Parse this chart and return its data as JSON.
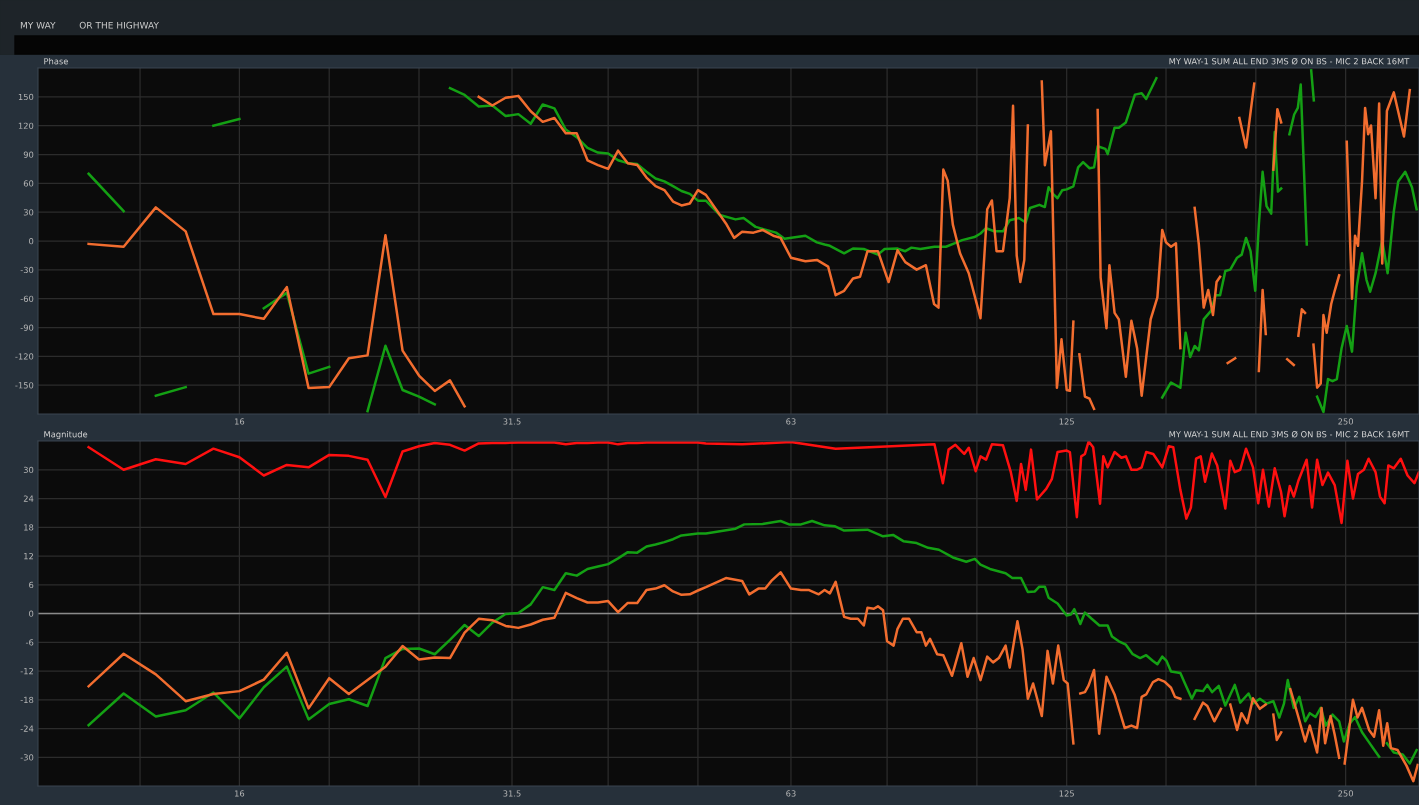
{
  "chart_data": [
    {
      "type": "line",
      "title": "Phase",
      "subtitle": "MY WAY-1 SUM ALL END 3MS Ø ON BS - MIC 2 BACK 16MT",
      "annotations": [
        "MY WAY",
        "OR THE HIGHWAY"
      ],
      "log": "x",
      "grid": true,
      "legend": false,
      "xlim": [
        9.7,
        300
      ],
      "xticks": [
        {
          "value": 12.5,
          "label": null
        },
        16,
        {
          "value": 20,
          "label": null
        },
        {
          "value": 25,
          "label": null
        },
        31.5,
        {
          "value": 40,
          "label": null
        },
        {
          "value": 50,
          "label": null
        },
        63,
        {
          "value": 80,
          "label": null
        },
        {
          "value": 100,
          "label": null
        },
        125,
        {
          "value": 160,
          "label": null
        },
        {
          "value": 200,
          "label": null
        },
        250
      ],
      "ylim": [
        -180,
        180
      ],
      "yticks": [
        -150,
        -120,
        -90,
        -60,
        -30,
        0,
        30,
        60,
        90,
        120,
        150
      ],
      "series": [
        {
          "color": "#14a014",
          "x": [
            11,
            12,
            12.5,
            13,
            14,
            14.5,
            15,
            16,
            16.5,
            17,
            18,
            19,
            20,
            21,
            22,
            23,
            24,
            25,
            26,
            26.5,
            27,
            28,
            29,
            30,
            31,
            32,
            33,
            34,
            35,
            36,
            37,
            38,
            39,
            40,
            41,
            42,
            43,
            44,
            45,
            46,
            47,
            48,
            49,
            50,
            51,
            52.8,
            54.9,
            56,
            57.7,
            60.7,
            62,
            65.3,
            67.2,
            68.5,
            69.4,
            71.9,
            73.5,
            75.5,
            78.2,
            79.5,
            82,
            83.7,
            85,
            86.9,
            90,
            92.6,
            94.7,
            96.4,
            99.4,
            100.9,
            102.3,
            104.4,
            106.7,
            108.5,
            111,
            112.9,
            114.1,
            116.8,
            118.4,
            119.5,
            120.8,
            122.2,
            123.6,
            125,
            127.1,
            128.6,
            130.2,
            132.3,
            133.8,
            135,
            137.6,
            138.4,
            140.8,
            142.3,
            144.8,
            148.1,
            150.6,
            152.3,
            156.2,
            157.5,
            158.5,
            162,
            165.8,
            168,
            169.9,
            171.8,
            173.6,
            175.7,
            179,
            181,
            183,
            185.4,
            187.7,
            190.9,
            193.1,
            195.2,
            197.4,
            199.7,
            201.5,
            203.4,
            205.4,
            207.8,
            209.6,
            211.3,
            213,
            215,
            217.4,
            220,
            222,
            223.6,
            227,
            228.5,
            229.5,
            231,
            232,
            232.9,
            236.6,
            239.3,
            242,
            244.6,
            247.5,
            250.7,
            254,
            257,
            260.4,
            263.3,
            265.7,
            269.3,
            273.8,
            277.5,
            281.8,
            284.9,
            289.9,
            294.8,
            298.2
          ],
          "values": [
            70,
            31,
            null,
            -161,
            -152,
            null,
            120,
            127,
            null,
            -70,
            -54,
            -138,
            -131,
            null,
            -177,
            -109,
            -155,
            -162,
            -170,
            null,
            159,
            152,
            140,
            141,
            130,
            132,
            122,
            142,
            138,
            116,
            108,
            97,
            92,
            91,
            84,
            81,
            80,
            72,
            65,
            62,
            57,
            52,
            49,
            42,
            42,
            27,
            22.5,
            23.9,
            14.7,
            8.7,
            2.3,
            5.5,
            -1.4,
            -3.7,
            -5,
            -12.8,
            -7.8,
            -8.3,
            -14.2,
            -8.3,
            -7.8,
            -10.6,
            -6.9,
            -8.3,
            -6,
            -6,
            -2.3,
            0.9,
            4.1,
            7.8,
            13.3,
            10.1,
            10.1,
            21.6,
            23.9,
            19.3,
            34.4,
            37.6,
            35.3,
            56,
            49,
            44.5,
            52.8,
            53.7,
            56.9,
            76.6,
            82.1,
            75.7,
            76.6,
            98.6,
            95.9,
            90.4,
            117.9,
            117.9,
            123.4,
            152.3,
            153.7,
            147.7,
            169.3,
            null,
            -162.8,
            -147.2,
            -152.7,
            -95.4,
            -120.6,
            -109.2,
            -113.8,
            -81.6,
            -72.5,
            -56.4,
            -56.4,
            -31.2,
            -29.8,
            -17.4,
            -14.2,
            3.2,
            -10.6,
            -51.8,
            17,
            72,
            36.2,
            28.4,
            113.3,
            51.4,
            54.6,
            null,
            111,
            131.6,
            138.5,
            162.8,
            -3.7,
            null,
            177.5,
            146.3,
            null,
            -161.9,
            -178,
            -143.6,
            -145.8,
            -143.6,
            -111.5,
            -88.5,
            -115.1,
            -47.2,
            -12.8,
            -40.4,
            -52.8,
            -33.5,
            0.9,
            -33.5,
            30.7,
            61.9,
            72,
            56,
            33
          ]
        },
        {
          "color": "#f26d2f",
          "x": [
            11,
            12,
            13,
            14,
            15,
            16,
            17,
            18,
            19,
            20,
            21,
            22,
            23,
            24,
            25,
            26,
            27,
            28,
            28.5,
            29,
            30,
            31,
            32,
            33,
            34,
            35,
            36,
            37,
            38,
            39,
            40,
            41,
            42,
            43,
            44,
            45,
            46,
            47,
            48,
            49,
            50,
            51,
            53.6,
            54.7,
            55.8,
            57.4,
            58.7,
            60.3,
            61.4,
            63,
            65.3,
            67.2,
            69.1,
            70.4,
            71.9,
            73.5,
            74.8,
            76.2,
            78.2,
            80.3,
            82.1,
            83.7,
            86.1,
            88.1,
            89.9,
            90.9,
            92,
            93,
            94.2,
            95.9,
            98,
            100.9,
            102.6,
            103.8,
            105,
            106.7,
            108.5,
            109.4,
            110.4,
            111.4,
            112.5,
            113.5,
            115.5,
            117.5,
            118.4,
            120.2,
            122,
            123.4,
            125,
            126,
            127.1,
            128,
            129,
            130.8,
            132.3,
            133.8,
            134.5,
            135,
            136,
            138,
            139,
            140.8,
            142.3,
            144.8,
            146.8,
            148.9,
            150.6,
            154,
            156.6,
            158.5,
            160,
            162,
            164,
            165.8,
            168,
            171.8,
            173.6,
            175.7,
            177.7,
            179.8,
            181.4,
            183,
            185,
            186.5,
            190,
            191,
            192,
            195.2,
            199.2,
            200.5,
            201.5,
            203.4,
            205,
            207,
            208.9,
            211,
            213,
            215,
            216.2,
            219.8,
            220.5,
            222.3,
            224.2,
            226,
            228.5,
            230.8,
            232.9,
            235,
            236.6,
            238.5,
            241.2,
            243.3,
            246,
            248,
            250.7,
            254,
            255.9,
            257.8,
            260.4,
            262.4,
            264.4,
            266.3,
            269.3,
            271.7,
            273.8,
            277,
            281.8,
            289,
            293.2
          ],
          "values": [
            -3,
            -6,
            35,
            10,
            -76,
            -76,
            -81,
            -48,
            -153,
            -152,
            -122,
            -119,
            6,
            -114,
            -140,
            -156,
            -145,
            -172,
            null,
            150,
            141,
            149,
            151,
            135,
            124,
            128,
            112,
            112,
            84,
            79,
            75,
            94,
            81,
            79,
            66,
            57,
            53,
            41,
            37,
            39,
            53,
            48,
            18.3,
            3.2,
            9.6,
            8.7,
            11.5,
            5.5,
            3.2,
            -17.4,
            -21.1,
            -19.7,
            -26.6,
            -56.4,
            -51.8,
            -39,
            -37.2,
            -10.6,
            -10.6,
            -42.7,
            -9.6,
            -22,
            -29.8,
            -25.2,
            -65.6,
            -69.3,
            74.3,
            62.8,
            17,
            -12.8,
            -33.5,
            -80.3,
            33,
            42.2,
            -10.6,
            -10.6,
            44.5,
            140.8,
            -15.1,
            -42.7,
            -19.7,
            120.2,
            null,
            166,
            78.9,
            114.2,
            -152.7,
            -102.3,
            -155,
            -155.9,
            -83.9,
            null,
            -118,
            -161.9,
            -164.1,
            -174.7,
            null,
            136.2,
            -38.1,
            -90.8,
            -25.2,
            -74.8,
            -81.6,
            -141.3,
            -83,
            -111.5,
            -161,
            -81.6,
            -58.7,
            11.5,
            -1.4,
            -6,
            -2.3,
            -111.5,
            null,
            34.4,
            -3.7,
            -69.3,
            -50.9,
            -77.1,
            -42.7,
            -37.2,
            null,
            -127,
            -122,
            null,
            128,
            97.2,
            163.8,
            null,
            -135.3,
            -50.9,
            -96.8,
            null,
            74.3,
            137.2,
            123.4,
            null,
            -123,
            -129,
            null,
            -98.6,
            -71.1,
            -74.8,
            null,
            -107.8,
            -152.7,
            -148.2,
            -77.1,
            -95.4,
            -65.6,
            -51.8,
            -35.8,
            null,
            103.2,
            -60.1,
            5.5,
            -5,
            61.9,
            138.5,
            111,
            120.2,
            44.5,
            143.1,
            -23.4,
            135.3,
            154.6,
            108.7,
            156.9
          ]
        }
      ]
    },
    {
      "type": "line",
      "title": "Magnitude",
      "subtitle": "MY WAY-1 SUM ALL END 3MS Ø ON BS - MIC 2 BACK 16MT",
      "log": "x",
      "grid": true,
      "legend": false,
      "xlim": [
        9.7,
        300
      ],
      "xticks": [
        {
          "value": 12.5,
          "label": null
        },
        16,
        {
          "value": 20,
          "label": null
        },
        {
          "value": 25,
          "label": null
        },
        31.5,
        {
          "value": 40,
          "label": null
        },
        {
          "value": 50,
          "label": null
        },
        63,
        {
          "value": 80,
          "label": null
        },
        {
          "value": 100,
          "label": null
        },
        125,
        {
          "value": 160,
          "label": null
        },
        {
          "value": 200,
          "label": null
        },
        250
      ],
      "ylim": [
        -36,
        36
      ],
      "yticks": [
        -30,
        -24,
        -18,
        -12,
        -6,
        0,
        6,
        12,
        18,
        24,
        30
      ],
      "ref_lines": [
        {
          "axis": "y",
          "value": 0,
          "color": "#8a8a8a"
        }
      ],
      "series": [
        {
          "color": "#ff1010",
          "x": [
            11,
            12,
            13,
            14,
            15,
            16,
            17,
            18,
            19,
            20,
            21,
            22,
            23,
            24,
            25,
            26,
            27,
            28,
            29,
            30,
            31,
            32,
            33,
            34,
            35,
            36,
            37,
            38,
            39,
            40,
            41,
            42,
            43,
            44,
            45,
            46,
            47,
            48,
            49,
            50,
            51,
            55.8,
            63,
            70.4,
            80.9,
            90,
            91.9,
            93.2,
            94.8,
            96.9,
            98,
            99.7,
            100.9,
            102.3,
            103.8,
            106.7,
            108.8,
            110.4,
            111.6,
            112.9,
            114.4,
            116.1,
            118.8,
            120.5,
            122.2,
            125,
            126,
            128.2,
            129.6,
            130.8,
            132,
            133.5,
            135.8,
            136.9,
            138.4,
            140.8,
            143.2,
            144.8,
            146.8,
            148.9,
            150.6,
            152.3,
            155,
            158.5,
            161.1,
            162.9,
            165.8,
            168.3,
            170.2,
            172.4,
            174.4,
            176.3,
            179.3,
            181.7,
            185.4,
            187.7,
            189.8,
            192.4,
            195.2,
            198.6,
            201.2,
            203.6,
            206.6,
            209.6,
            212.9,
            214.8,
            217.6,
            219.8,
            222.3,
            226.9,
            230,
            232.9,
            236,
            239.3,
            243.3,
            247.5,
            251.1,
            254.6,
            257.8,
            261.6,
            264.7,
            269.3,
            272.3,
            275.4,
            278,
            281.8,
            286.7,
            291.6,
            296.6,
            299.8
          ],
          "values": [
            34.7,
            30,
            32.2,
            31.2,
            34.4,
            32.6,
            28.8,
            31,
            30.5,
            33.1,
            32.9,
            32.1,
            24.3,
            33.8,
            34.9,
            35.6,
            35.2,
            34,
            35.5,
            35.6,
            35.6,
            35.7,
            35.7,
            35.7,
            35.7,
            35.3,
            35.6,
            35.6,
            35.7,
            35.7,
            35.3,
            35.6,
            35.6,
            35.7,
            35.7,
            35.7,
            35.7,
            35.7,
            35.7,
            35.7,
            35.5,
            35.3,
            35.8,
            34.4,
            34.9,
            35.3,
            27.2,
            34.2,
            35.2,
            33.3,
            34.6,
            29.7,
            32.8,
            32.1,
            35.3,
            35.1,
            29.5,
            23.5,
            31.2,
            25.8,
            34.2,
            23.8,
            26,
            28.1,
            33.7,
            34,
            33.7,
            20.1,
            32.8,
            33.3,
            35.9,
            34.7,
            22.9,
            32.8,
            30.5,
            33.7,
            32.5,
            32.8,
            30,
            30,
            30.5,
            33.7,
            33.3,
            30.5,
            34.9,
            34.7,
            25.8,
            19.8,
            22.1,
            32.3,
            32.8,
            27.5,
            33.4,
            30.9,
            21.9,
            31.9,
            29.5,
            30,
            34.4,
            30.5,
            23,
            30,
            22.3,
            30.3,
            25.4,
            20.3,
            26.6,
            24.4,
            27.7,
            32.1,
            22.1,
            32.1,
            26.8,
            29.4,
            26.8,
            18.9,
            31.9,
            24,
            29.1,
            30,
            32.3,
            29.5,
            24.4,
            23,
            30.9,
            30.3,
            32.3,
            28.8,
            27.2,
            29.4
          ]
        },
        {
          "color": "#14a014",
          "x": [
            11,
            12,
            13,
            14,
            15,
            16,
            17,
            18,
            19,
            20,
            21,
            22,
            23,
            24,
            25,
            26,
            27,
            28,
            29,
            30,
            31,
            32,
            33,
            34,
            35,
            36,
            37,
            38,
            39,
            40,
            41,
            42,
            43,
            44,
            45,
            46,
            47,
            48,
            49,
            50,
            51,
            54.9,
            56.1,
            58.7,
            61.4,
            62.7,
            64.6,
            66.4,
            68.5,
            70.3,
            71.9,
            76.2,
            79.2,
            81.2,
            83.3,
            86.1,
            88.6,
            91,
            94.2,
            97.4,
            99.5,
            100.9,
            103.3,
            107.4,
            109.2,
            111.6,
            113.5,
            115.5,
            116.8,
            118.4,
            119.5,
            122.2,
            125,
            126.3,
            127.4,
            129.3,
            130.8,
            133,
            135.6,
            138.4,
            139.9,
            142.3,
            144.8,
            147.3,
            150,
            152.3,
            154.9,
            156.6,
            158.5,
            160.2,
            162,
            165.8,
            167.7,
            170.6,
            172.4,
            175.4,
            177.3,
            179.4,
            182.4,
            185.4,
            189.8,
            192.4,
            196.4,
            198.6,
            202,
            205.4,
            208.9,
            212,
            214.5,
            216.5,
            219.8,
            222.8,
            226.1,
            228.7,
            232,
            235,
            238,
            242,
            246,
            248.9,
            252.5,
            255.9,
            260.4,
            265,
            271.7,
            274,
            277,
            281.8,
            288,
            293.2,
            298.2
          ],
          "values": [
            -23.3,
            -16.7,
            -21.5,
            -20.2,
            -16.5,
            -21.9,
            -15.4,
            -11.1,
            -22.1,
            -18.9,
            -17.9,
            -19.3,
            -9.3,
            -7.4,
            -7.3,
            -8.5,
            -5.5,
            -2.4,
            -4.7,
            -1.9,
            -0.1,
            0.1,
            1.9,
            5.5,
            4.9,
            8.4,
            7.9,
            9.3,
            9.8,
            10.3,
            11.5,
            12.8,
            12.7,
            14,
            14.4,
            14.9,
            15.5,
            16.3,
            16.5,
            16.7,
            16.7,
            17.7,
            18.6,
            18.7,
            19.3,
            18.6,
            18.6,
            19.3,
            18.4,
            18.2,
            17.3,
            17.5,
            16.1,
            16.4,
            15.1,
            14.7,
            13.7,
            13.3,
            11.7,
            10.8,
            11.4,
            10.2,
            9.3,
            8.4,
            7.4,
            7.4,
            4.5,
            4.6,
            5.6,
            5.6,
            3.3,
            2.1,
            -0.4,
            -0.2,
            0.9,
            -2.2,
            0.2,
            -1.1,
            -2.5,
            -2.5,
            -4.8,
            -5.8,
            -6.5,
            -8.5,
            -9.3,
            -8.7,
            -9.9,
            -10.6,
            -9,
            -9.9,
            -12.1,
            -12.4,
            -14.6,
            -17.8,
            -16,
            -16.2,
            -14.9,
            -16.4,
            -15.1,
            -19.2,
            -14.9,
            -18.6,
            -16.7,
            -18.8,
            -17.8,
            -18.8,
            -18.3,
            -21.7,
            -18.8,
            -13.9,
            -19.7,
            -17.4,
            -22.5,
            -20.8,
            -21.6,
            -19.7,
            -23.4,
            -21.1,
            -22.5,
            -26.7,
            -23,
            -21.6,
            -24.8,
            -26.9,
            -29.9,
            null,
            -27.1,
            -29,
            -29.4,
            -31.3,
            -28.5
          ]
        },
        {
          "color": "#f26d2f",
          "x": [
            11,
            12,
            13,
            14,
            15,
            16,
            17,
            18,
            19,
            20,
            21,
            22,
            23,
            24,
            25,
            26,
            27,
            28,
            29,
            30,
            31,
            32,
            33,
            34,
            35,
            36,
            37,
            38,
            39,
            40,
            41,
            42,
            43,
            44,
            45,
            46,
            47,
            48,
            49,
            50,
            51,
            53.6,
            55.8,
            56.8,
            58.1,
            59.1,
            60,
            61.4,
            63,
            64.6,
            65.9,
            67.5,
            68.5,
            69.4,
            70.4,
            71.9,
            73.1,
            74.4,
            75.5,
            76.2,
            77.4,
            78.2,
            79.2,
            80,
            81.3,
            82.1,
            83.2,
            84.5,
            86.1,
            87.1,
            88.1,
            89,
            90.6,
            92,
            94,
            96.2,
            97.7,
            99.2,
            100.9,
            102.6,
            104.1,
            105.6,
            107.4,
            108.5,
            110.6,
            112,
            113.5,
            115,
            117.5,
            119.2,
            120.8,
            122.4,
            124.1,
            125.3,
            127.1,
            128.2,
            129.3,
            130.8,
            132,
            133.8,
            135.5,
            138,
            140.8,
            144.4,
            146.8,
            148.9,
            150.6,
            152.3,
            154.9,
            157,
            159.4,
            162,
            163.6,
            165.8,
            168.5,
            171.8,
            175.4,
            177.3,
            180.4,
            183.4,
            185.5,
            187.7,
            190.9,
            193,
            195.8,
            198.6,
            202,
            205,
            207,
            208.9,
            210.7,
            213,
            215.5,
            217.9,
            219.8,
            222.3,
            226.1,
            228.7,
            232.9,
            235.5,
            237.6,
            240.8,
            243.3,
            246,
            247.8,
            249.4,
            254.6,
            257.5,
            260.4,
            265,
            268.3,
            271.7,
            274.5,
            277.2,
            279.8,
            284.5,
            290.9,
            295.8,
            299
          ],
          "values": [
            -15.2,
            -8.4,
            -12.7,
            -18.3,
            -16.8,
            -16.2,
            -13.8,
            -8.2,
            -19.8,
            -13.5,
            -16.8,
            -13.9,
            -11.1,
            -6.8,
            -9.6,
            -9.2,
            -9.3,
            -4,
            -1.1,
            -1.4,
            -2.6,
            -3,
            -2.3,
            -1.3,
            -0.9,
            4.3,
            3.2,
            2.3,
            2.3,
            2.6,
            0.3,
            2.2,
            2.2,
            4.9,
            5.2,
            5.9,
            4.6,
            3.9,
            4,
            4.8,
            5.5,
            7.4,
            6.8,
            4,
            5.2,
            5.2,
            6.8,
            8.6,
            5.2,
            4.9,
            4.9,
            4,
            4.9,
            4.2,
            6.6,
            -0.7,
            -1.1,
            -1.1,
            -2.5,
            1.2,
            1,
            1.5,
            0.7,
            -5.8,
            -6.7,
            -3.2,
            -1.1,
            -1.1,
            -3.9,
            -3.9,
            -6.7,
            -5.3,
            -8.5,
            -8.7,
            -13,
            -6.2,
            -13.2,
            -9.3,
            -13.9,
            -9,
            -10.2,
            -9.3,
            -6.7,
            -11.3,
            -1.6,
            -7.4,
            -17.8,
            -14.6,
            -21.4,
            -7.8,
            -14.6,
            -6.7,
            -13.9,
            -14.6,
            -27.1,
            null,
            -16.7,
            -16.4,
            -15,
            -11.8,
            -25.1,
            -13.2,
            -16.9,
            -23.9,
            -23.4,
            -23.9,
            -17.4,
            -16.9,
            -14.3,
            -13.7,
            -14.2,
            -15.5,
            -17.4,
            -17.8,
            null,
            -22,
            -18.6,
            -19.3,
            -22.5,
            -19.9,
            null,
            -19,
            -24.3,
            -20.8,
            -22.9,
            -17.7,
            -19.9,
            -19,
            null,
            -21.1,
            -26.4,
            -24.8,
            null,
            -15.8,
            -18.3,
            -21.6,
            -26.7,
            -23.4,
            -29,
            -19.7,
            -27.1,
            -21.4,
            -25.3,
            -30.1,
            null,
            -31.3,
            -18,
            -21.7,
            -19.7,
            -24.3,
            -25.7,
            -20.2,
            -27.6,
            -22.9,
            -28.1,
            -28.5,
            -31.8,
            -35,
            -31.6
          ]
        }
      ]
    }
  ]
}
